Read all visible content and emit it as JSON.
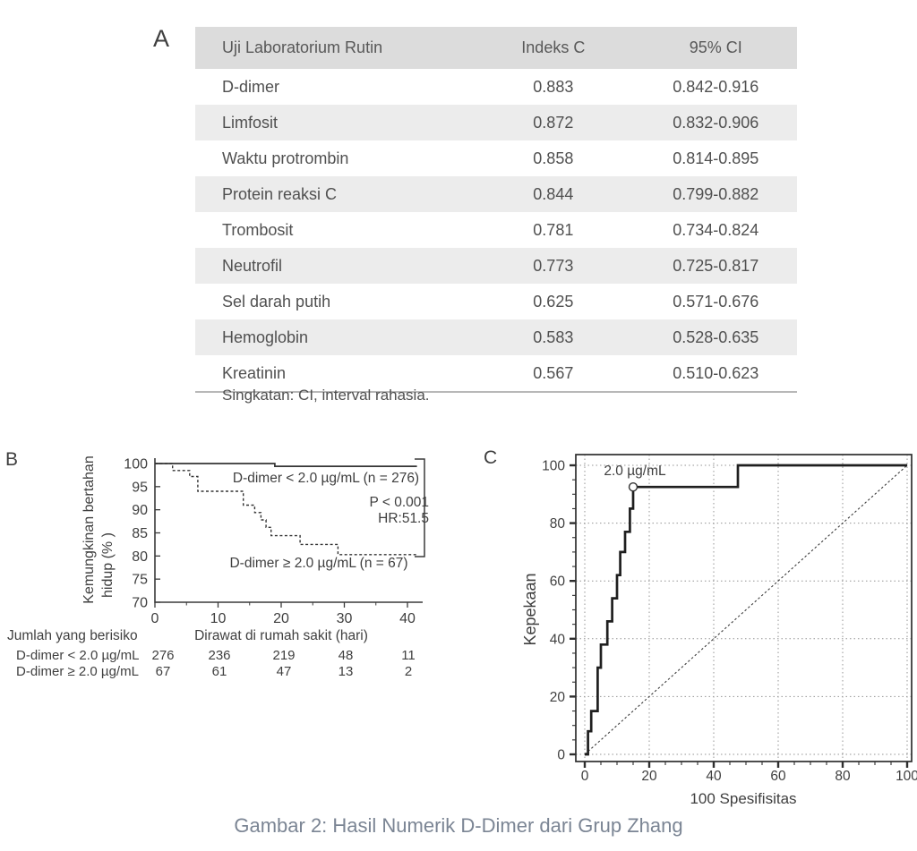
{
  "panelA": {
    "label": "A",
    "table": {
      "headers": [
        "Uji Laboratorium Rutin",
        "Indeks C",
        "95% CI"
      ],
      "rows": [
        [
          "D-dimer",
          "0.883",
          "0.842-0.916"
        ],
        [
          "Limfosit",
          "0.872",
          "0.832-0.906"
        ],
        [
          "Waktu protrombin",
          "0.858",
          "0.814-0.895"
        ],
        [
          "Protein reaksi C",
          "0.844",
          "0.799-0.882"
        ],
        [
          "Trombosit",
          "0.781",
          "0.734-0.824"
        ],
        [
          "Neutrofil",
          "0.773",
          "0.725-0.817"
        ],
        [
          "Sel darah putih",
          "0.625",
          "0.571-0.676"
        ],
        [
          "Hemoglobin",
          "0.583",
          "0.528-0.635"
        ],
        [
          "Kreatinin",
          "0.567",
          "0.510-0.623"
        ]
      ],
      "footnote": "Singkatan: CI, interval rahasia."
    }
  },
  "panelB": {
    "label": "B"
  },
  "panelC": {
    "label": "C"
  },
  "caption": "Gambar 2: Hasil Numerik D-Dimer dari Grup Zhang",
  "colors": {
    "table_header_bg": "#dcdcdc",
    "table_stripe_bg": "#ececec",
    "axis_line": "#3a3a3a",
    "curve_line": "#1f1f1f",
    "grid_line": "#949494",
    "caption_text": "#7b8594"
  },
  "chart_data": [
    {
      "id": "km_survival",
      "type": "line",
      "title": "",
      "xlabel": "Dirawat di rumah sakit (hari)",
      "ylabel_lines": [
        "Kemungkinan bertahan",
        "hidup (% )"
      ],
      "xlim": [
        0,
        42
      ],
      "ylim": [
        70,
        100
      ],
      "xticks": [
        0,
        10,
        20,
        30,
        40
      ],
      "xminor": [
        5,
        15,
        25,
        35
      ],
      "yticks": [
        70,
        75,
        80,
        85,
        90,
        95,
        100
      ],
      "series": [
        {
          "name": "D-dimer < 2.0 µg/mL (n = 276)",
          "style": "solid",
          "points": [
            [
              0,
              100
            ],
            [
              19,
              100
            ],
            [
              19,
              99.4
            ],
            [
              41.5,
              99.4
            ]
          ]
        },
        {
          "name": "D-dimer ≥ 2.0 µg/mL (n = 67)",
          "style": "dashed",
          "points": [
            [
              0,
              100
            ],
            [
              2.8,
              100
            ],
            [
              2.8,
              98.5
            ],
            [
              5.5,
              98.5
            ],
            [
              5.5,
              97.2
            ],
            [
              6.8,
              97.2
            ],
            [
              6.8,
              94
            ],
            [
              14,
              94
            ],
            [
              14,
              91
            ],
            [
              15.8,
              91
            ],
            [
              15.8,
              89.4
            ],
            [
              16.8,
              89.4
            ],
            [
              16.8,
              87.8
            ],
            [
              17.6,
              87.8
            ],
            [
              17.6,
              86.2
            ],
            [
              18.4,
              86.2
            ],
            [
              18.4,
              84.4
            ],
            [
              23,
              84.4
            ],
            [
              23,
              82.5
            ],
            [
              29,
              82.5
            ],
            [
              29,
              80.3
            ],
            [
              41.5,
              80.3
            ]
          ]
        }
      ],
      "annotations": {
        "p_value": "P < 0.001",
        "hazard_ratio": "HR:51.5"
      },
      "risk_table": {
        "title": "Jumlah yang berisiko",
        "times": [
          0,
          10,
          20,
          30,
          40
        ],
        "rows": [
          {
            "label": "D-dimer < 2.0 µg/mL",
            "values": [
              "276",
              "236",
              "219",
              "48",
              "11"
            ]
          },
          {
            "label": "D-dimer ≥ 2.0 µg/mL",
            "values": [
              "67",
              "61",
              "47",
              "13",
              "2"
            ]
          }
        ]
      }
    },
    {
      "id": "roc_curve",
      "type": "line",
      "xlabel": "100 Spesifisitas",
      "ylabel": "Kepekaan",
      "xlim": [
        0,
        100
      ],
      "ylim": [
        0,
        100
      ],
      "xticks": [
        0,
        20,
        40,
        60,
        80,
        100
      ],
      "yticks": [
        0,
        20,
        40,
        60,
        80,
        100
      ],
      "minor_tick_step": 5,
      "grid": true,
      "diagonal_reference": true,
      "roc": {
        "points": [
          [
            0,
            0
          ],
          [
            1,
            0
          ],
          [
            1,
            8
          ],
          [
            2,
            8
          ],
          [
            2,
            15
          ],
          [
            4,
            15
          ],
          [
            4,
            30
          ],
          [
            5,
            30
          ],
          [
            5,
            38
          ],
          [
            7,
            38
          ],
          [
            7,
            46
          ],
          [
            8.5,
            46
          ],
          [
            8.5,
            54
          ],
          [
            10,
            54
          ],
          [
            10,
            62
          ],
          [
            11,
            62
          ],
          [
            11,
            70
          ],
          [
            12.5,
            70
          ],
          [
            12.5,
            77
          ],
          [
            14,
            77
          ],
          [
            14,
            85
          ],
          [
            15,
            85
          ],
          [
            15,
            92.5
          ],
          [
            47.5,
            92.5
          ],
          [
            47.5,
            100
          ],
          [
            100,
            100
          ]
        ],
        "cutoff_marker": {
          "x": 15,
          "y": 92.5,
          "label": "2.0 µg/mL"
        }
      }
    }
  ]
}
